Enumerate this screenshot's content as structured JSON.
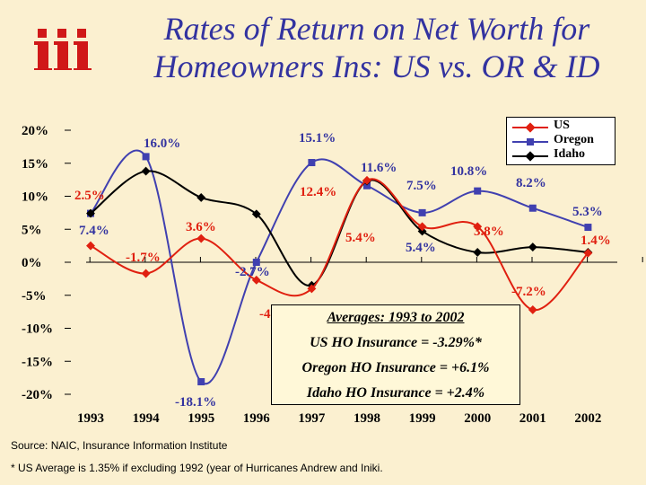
{
  "title_line1": "Rates of Return on Net Worth for",
  "title_line2": "Homeowners Ins: US vs. OR & ID",
  "logo_name": "iii-logo",
  "colors": {
    "background": "#fbf0d0",
    "title": "#3333a0",
    "us": "#e02010",
    "oregon": "#4040b0",
    "idaho": "#000000",
    "logo": "#d01818"
  },
  "chart_data": {
    "type": "line",
    "title": "Rates of Return on Net Worth for Homeowners Ins: US vs. OR & ID",
    "xlabel": "",
    "ylabel": "",
    "categories": [
      "1993",
      "1994",
      "1995",
      "1996",
      "1997",
      "1998",
      "1999",
      "2000",
      "2001",
      "2002"
    ],
    "ylim": [
      -20,
      20
    ],
    "yticks": [
      20,
      15,
      10,
      5,
      0,
      -5,
      -10,
      -15,
      -20
    ],
    "ytick_labels": [
      "20%",
      "15%",
      "10%",
      "5%",
      "0%",
      "-5%",
      "-10%",
      "-15%",
      "-20%"
    ],
    "series": [
      {
        "name": "US",
        "values": [
          2.5,
          -1.7,
          3.6,
          -2.7,
          -4.0,
          12.4,
          5.4,
          5.4,
          -7.2,
          1.4
        ]
      },
      {
        "name": "Oregon",
        "values": [
          7.4,
          16.0,
          -18.1,
          0.0,
          15.1,
          11.6,
          7.5,
          10.8,
          8.2,
          5.3
        ]
      },
      {
        "name": "Idaho",
        "values": [
          7.4,
          13.8,
          9.8,
          7.3,
          -3.5,
          12.3,
          4.7,
          1.5,
          2.3,
          1.5
        ]
      }
    ],
    "data_labels": [
      "2.5%",
      "7.4%",
      "16.0%",
      "-1.7%",
      "3.6%",
      "-18.1%",
      "-2.7%",
      "15.1%",
      "12.4%",
      "11.6%",
      "5.4%",
      "7.5%",
      "5.4%",
      "10.8%",
      "3.8%",
      "8.2%",
      "-7.2%",
      "5.3%",
      "1.4%",
      "-4"
    ],
    "legend": [
      "US",
      "Oregon",
      "Idaho"
    ],
    "legend_position": "top-right"
  },
  "averages_box": {
    "title": "Averages:  1993 to 2002",
    "us": "US HO Insurance = -3.29%*",
    "oregon": "Oregon HO Insurance = +6.1%",
    "idaho": "Idaho HO Insurance = +2.4%"
  },
  "source_note": "Source:  NAIC, Insurance Information Institute",
  "footnote": "* US Average is 1.35% if excluding 1992 (year of Hurricanes Andrew and Iniki."
}
